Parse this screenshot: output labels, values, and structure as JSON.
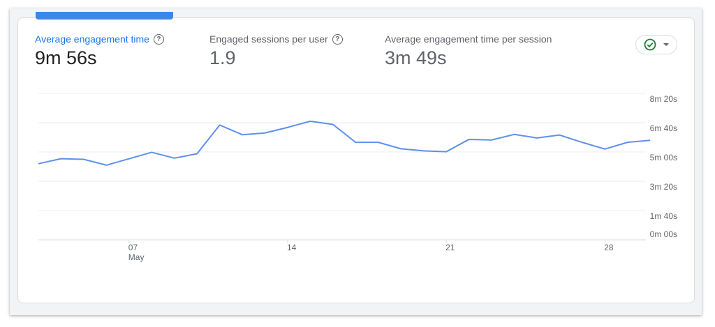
{
  "metrics": [
    {
      "label": "Average engagement time",
      "value": "9m 56s",
      "help": "?",
      "active": true
    },
    {
      "label": "Engaged sessions per user",
      "value": "1.9",
      "help": "?",
      "active": false
    },
    {
      "label": "Average engagement time per session",
      "value": "3m 49s",
      "active": false
    }
  ],
  "compare_button": {
    "icon": "check-circle-icon",
    "dropdown": "caret-down-icon",
    "check_color": "#188038"
  },
  "chart_data": {
    "type": "line",
    "x": [
      "May 3",
      "May 4",
      "May 5",
      "May 6",
      "May 7",
      "May 8",
      "May 9",
      "May 10",
      "May 11",
      "May 12",
      "May 13",
      "May 14",
      "May 15",
      "May 16",
      "May 17",
      "May 18",
      "May 19",
      "May 20",
      "May 21",
      "May 22",
      "May 23",
      "May 24",
      "May 25",
      "May 26",
      "May 27",
      "May 28",
      "May 29",
      "May 30"
    ],
    "values_seconds": [
      260,
      277,
      275,
      255,
      277,
      299,
      279,
      294,
      392,
      359,
      365,
      384,
      405,
      394,
      333,
      333,
      311,
      304,
      301,
      343,
      341,
      360,
      348,
      358,
      333,
      310,
      333,
      340
    ],
    "x_ticks": [
      {
        "label": "07",
        "sub": "May",
        "index": 4
      },
      {
        "label": "14",
        "index": 11
      },
      {
        "label": "21",
        "index": 18
      },
      {
        "label": "28",
        "index": 25
      }
    ],
    "y_ticks": [
      {
        "value": 500,
        "label": "8m 20s"
      },
      {
        "value": 400,
        "label": "6m 40s"
      },
      {
        "value": 300,
        "label": "5m 00s"
      },
      {
        "value": 200,
        "label": "3m 20s"
      },
      {
        "value": 100,
        "label": "1m 40s"
      },
      {
        "value": 0,
        "label": "0m 00s"
      }
    ],
    "ylim": [
      0,
      500
    ],
    "grid": true,
    "y_axis_position": "right",
    "line_color": "#5e8fea"
  }
}
